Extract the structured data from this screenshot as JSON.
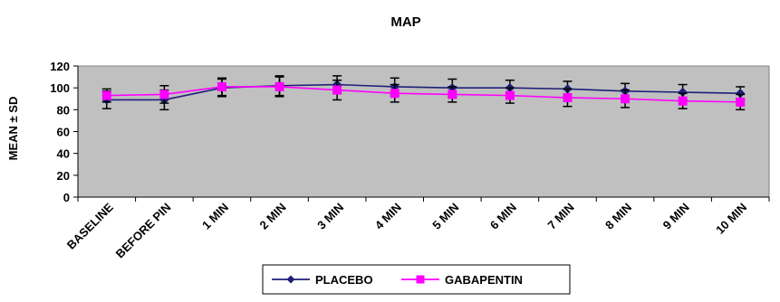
{
  "chart_data": {
    "type": "line",
    "title": "MAP",
    "xlabel": "",
    "ylabel": "MEAN ± SD",
    "ylim": [
      0,
      120
    ],
    "yticks": [
      0,
      20,
      40,
      60,
      80,
      100,
      120
    ],
    "grid": false,
    "legend_position": "bottom",
    "plot_background": "#C0C0C0",
    "categories": [
      "BASELINE",
      "BEFORE PIN",
      "1 MIN",
      "2 MIN",
      "3 MIN",
      "4 MIN",
      "5 MIN",
      "6 MIN",
      "7 MIN",
      "8 MIN",
      "9 MIN",
      "10 MIN"
    ],
    "series": [
      {
        "name": "PLACEBO",
        "color": "#1F1F7A",
        "marker": "diamond",
        "values": [
          89,
          89,
          100,
          102,
          103,
          101,
          100,
          100,
          99,
          97,
          96,
          95
        ],
        "sd": [
          8,
          9,
          8,
          9,
          8,
          8,
          8,
          7,
          7,
          7,
          7,
          6
        ]
      },
      {
        "name": "GABAPENTIN",
        "color": "#FF00FF",
        "marker": "square",
        "values": [
          93,
          94,
          101,
          101,
          98,
          95,
          94,
          93,
          91,
          90,
          88,
          87
        ],
        "sd": [
          6,
          8,
          8,
          9,
          9,
          8,
          7,
          7,
          8,
          8,
          7,
          7
        ]
      }
    ]
  }
}
